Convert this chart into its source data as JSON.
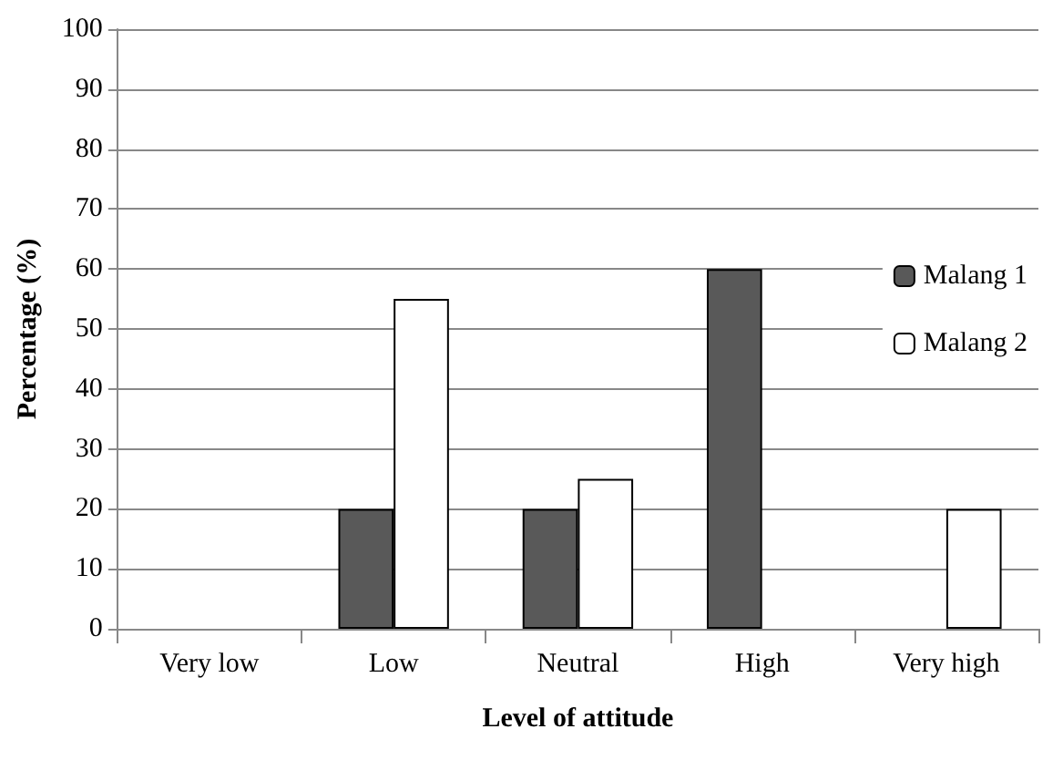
{
  "chart_data": {
    "type": "bar",
    "xlabel": "Level of attitude",
    "ylabel": "Percentage (%)",
    "categories": [
      "Very low",
      "Low",
      "Neutral",
      "High",
      "Very high"
    ],
    "series": [
      {
        "name": "Malang 1",
        "color": "#595959",
        "values": [
          0,
          20,
          20,
          60,
          0
        ]
      },
      {
        "name": "Malang 2",
        "color": "#ffffff",
        "values": [
          0,
          55,
          25,
          0,
          20
        ]
      }
    ],
    "ylim": [
      0,
      100
    ],
    "yticks": [
      0,
      10,
      20,
      30,
      40,
      50,
      60,
      70,
      80,
      90,
      100
    ],
    "grid": "y",
    "legend": "top right"
  }
}
